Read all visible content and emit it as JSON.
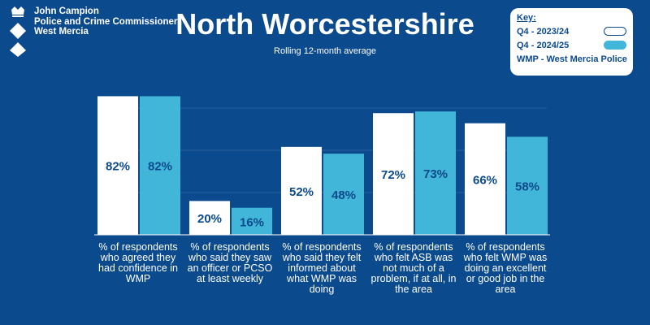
{
  "logo": {
    "line1": "John Campion",
    "line2": "Police and Crime Commissioner",
    "line3": "West Mercia"
  },
  "header": {
    "title": "North Worcestershire",
    "subtitle": "Rolling 12-month average"
  },
  "key": {
    "title": "Key:",
    "items": [
      {
        "label": "Q4 - 2023/24",
        "color": "#ffffff"
      },
      {
        "label": "Q4 - 2024/25",
        "color": "#41b6d8"
      }
    ],
    "note": "WMP - West Mercia Police"
  },
  "colors": {
    "background": "#0b4a8c",
    "series1": "#ffffff",
    "series2": "#41b6d8",
    "label": "#0b4a8c"
  },
  "chart_data": {
    "type": "bar",
    "categories": [
      "% of respondents who agreed they had confidence in WMP",
      "% of respondents who said they saw an officer or PCSO at least weekly",
      "% of respondents who said they felt  informed about what WMP was doing",
      "% of respondents who felt ASB was not much of a problem, if at all, in the area",
      "% of respondents who felt WMP was doing an excellent or good job in the area"
    ],
    "series": [
      {
        "name": "Q4 - 2023/24",
        "values": [
          82,
          20,
          52,
          72,
          66
        ],
        "labels": [
          "82%",
          "20%",
          "52%",
          "72%",
          "66%"
        ]
      },
      {
        "name": "Q4 - 2024/25",
        "values": [
          82,
          16,
          48,
          73,
          58
        ],
        "labels": [
          "82%",
          "16%",
          "48%",
          "73%",
          "58%"
        ]
      }
    ],
    "ylim": [
      0,
      100
    ],
    "grid": true,
    "legend": "top-right",
    "value_label_position": "middle"
  }
}
